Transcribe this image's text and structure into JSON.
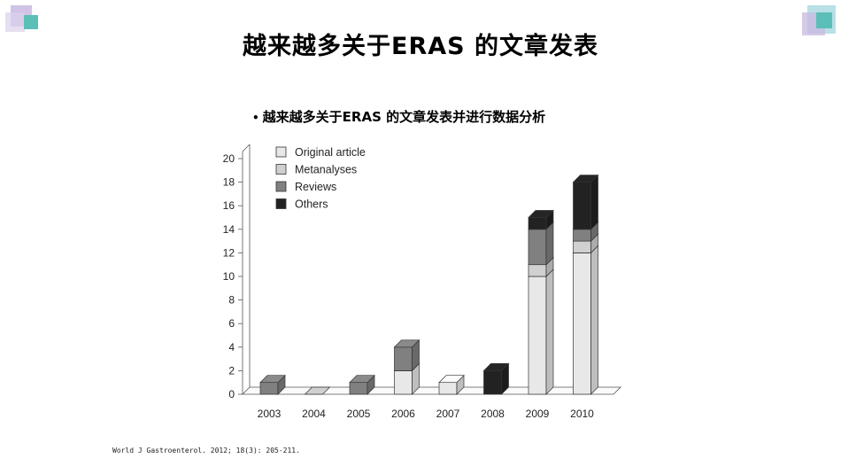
{
  "slide": {
    "title": "越来越多关于ERAS 的文章发表",
    "bullet": "越来越多关于ERAS 的文章发表并进行数据分析",
    "citation": "World J Gastroenterol. 2012; 18(3): 205-211."
  },
  "colors": {
    "deco_purple": "#c9b8e0",
    "deco_teal": "#5bbfb8",
    "deco_lightblue": "#b9d7ee",
    "original": "#e8e8e8",
    "metanalyses": "#d0d0d0",
    "reviews": "#808080",
    "others": "#222222"
  },
  "chart_data": {
    "type": "bar",
    "stacked": true,
    "style": "3d",
    "categories": [
      "2003",
      "2004",
      "2005",
      "2006",
      "2007",
      "2008",
      "2009",
      "2010"
    ],
    "series": [
      {
        "name": "Original article",
        "values": [
          0,
          0,
          0,
          2,
          1,
          0,
          10,
          12
        ]
      },
      {
        "name": "Metanalyses",
        "values": [
          0,
          0,
          0,
          0,
          0,
          0,
          1,
          1
        ]
      },
      {
        "name": "Reviews",
        "values": [
          1,
          0,
          1,
          2,
          0,
          0,
          3,
          1
        ]
      },
      {
        "name": "Others",
        "values": [
          0,
          0,
          0,
          0,
          0,
          2,
          1,
          4
        ]
      }
    ],
    "yticks": [
      0,
      2,
      4,
      6,
      8,
      10,
      12,
      14,
      16,
      18,
      20
    ],
    "ylim": [
      0,
      20
    ],
    "legend_position": "top-left",
    "grid": false
  }
}
